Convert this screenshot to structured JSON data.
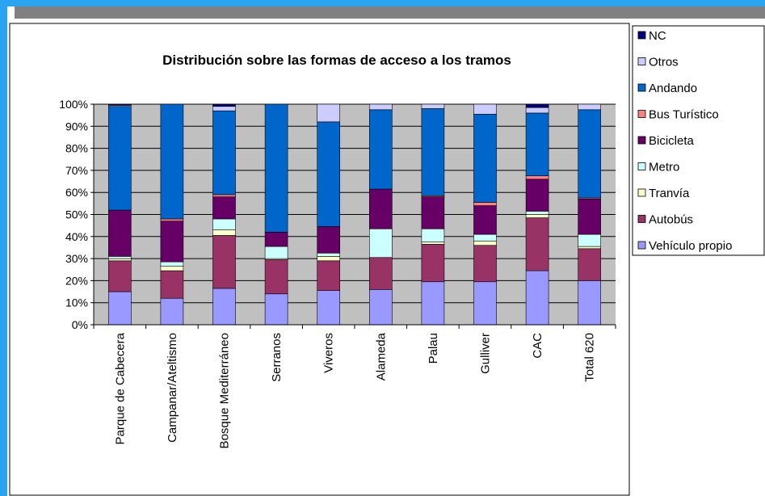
{
  "chart_data": {
    "type": "stacked_bar",
    "title": "Distribución sobre las formas de acceso a los tramos",
    "categories": [
      "Parque de Cabecera",
      "Campanar/Ateltismo",
      "Bosque Mediterráneo",
      "Serranos",
      "Viveros",
      "Alameda",
      "Palau",
      "Gulliver",
      "CAC",
      "Total 620"
    ],
    "series": [
      {
        "name": "Vehículo propio",
        "color": "#9999ff",
        "values": [
          15,
          12,
          16.5,
          14,
          15.5,
          16,
          19.5,
          19.5,
          24.5,
          20
        ]
      },
      {
        "name": "Autobús",
        "color": "#993366",
        "values": [
          14,
          12.5,
          24,
          15.5,
          13.5,
          14.5,
          17,
          16.5,
          24,
          14.5
        ]
      },
      {
        "name": "Tranvía",
        "color": "#ffffcc",
        "values": [
          1,
          2,
          2.5,
          0.5,
          2,
          0,
          1,
          2,
          1.5,
          1
        ]
      },
      {
        "name": "Metro",
        "color": "#ccffff",
        "values": [
          1,
          2,
          5,
          5.5,
          1.5,
          13,
          6,
          3,
          1.5,
          5.5
        ]
      },
      {
        "name": "Bicicleta",
        "color": "#660066",
        "values": [
          21,
          18.5,
          10,
          6.5,
          12,
          18,
          14.5,
          13,
          14.5,
          16
        ]
      },
      {
        "name": "Bus Turístico",
        "color": "#ff8080",
        "values": [
          0,
          1,
          1,
          0,
          0,
          0,
          0.5,
          1.5,
          1.5,
          0.5
        ]
      },
      {
        "name": "Andando",
        "color": "#0066cc",
        "values": [
          47,
          52,
          38,
          58,
          47.5,
          36,
          39.5,
          40,
          28.5,
          40
        ]
      },
      {
        "name": "Otros",
        "color": "#ccccff",
        "values": [
          0.5,
          0,
          2,
          0,
          8,
          2.5,
          2,
          4.5,
          2.5,
          2.5
        ]
      },
      {
        "name": "NC",
        "color": "#000080",
        "values": [
          0.5,
          0,
          1,
          0,
          0,
          0,
          0,
          0,
          1.5,
          0
        ]
      }
    ],
    "ylim": [
      0,
      100
    ],
    "yticks": [
      {
        "value": 0,
        "label": "0%"
      },
      {
        "value": 10,
        "label": "10%"
      },
      {
        "value": 20,
        "label": "20%"
      },
      {
        "value": 30,
        "label": "30%"
      },
      {
        "value": 40,
        "label": "40%"
      },
      {
        "value": 50,
        "label": "50%"
      },
      {
        "value": 60,
        "label": "60%"
      },
      {
        "value": 70,
        "label": "70%"
      },
      {
        "value": 80,
        "label": "80%"
      },
      {
        "value": 90,
        "label": "90%"
      },
      {
        "value": 100,
        "label": "100%"
      }
    ],
    "grid": true,
    "legend": "right"
  }
}
